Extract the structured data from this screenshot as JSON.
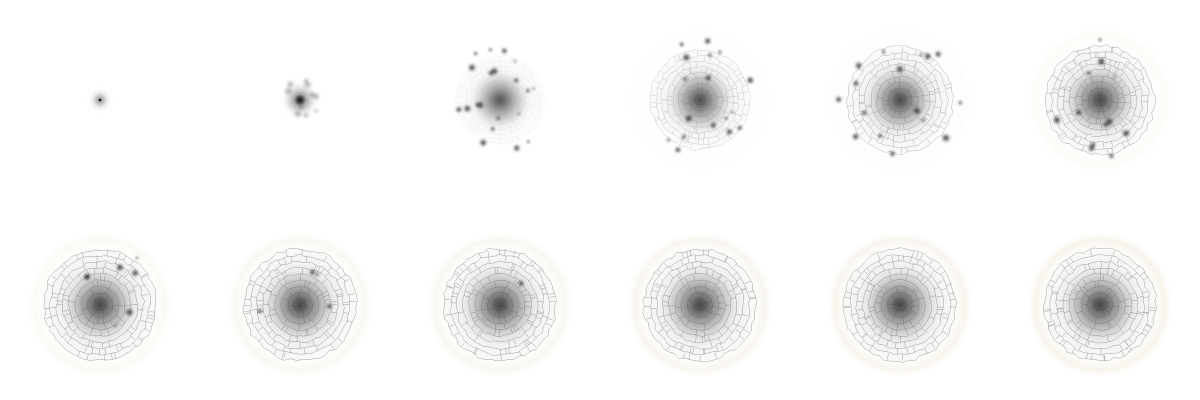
{
  "image": {
    "background": "#ffffff",
    "layout": {
      "rows": 2,
      "columns": 6
    },
    "ink_color": "#1a1a1a",
    "cell_line_color": "#555555",
    "halo_color": "#e9e4cf"
  },
  "frames": [
    {
      "stage": 1,
      "grid_level": 0.0,
      "halo_level": 0.0,
      "clump_count": 0,
      "spread": 0.0,
      "core": 0.2
    },
    {
      "stage": 2,
      "grid_level": 0.0,
      "halo_level": 0.0,
      "clump_count": 10,
      "spread": 0.35,
      "core": 0.55
    },
    {
      "stage": 3,
      "grid_level": 0.15,
      "halo_level": 0.0,
      "clump_count": 20,
      "spread": 0.9,
      "core": 0.8
    },
    {
      "stage": 4,
      "grid_level": 0.55,
      "halo_level": 0.1,
      "clump_count": 18,
      "spread": 1.0,
      "core": 0.85
    },
    {
      "stage": 5,
      "grid_level": 0.8,
      "halo_level": 0.2,
      "clump_count": 16,
      "spread": 1.0,
      "core": 0.9
    },
    {
      "stage": 6,
      "grid_level": 0.9,
      "halo_level": 0.3,
      "clump_count": 12,
      "spread": 1.0,
      "core": 0.92
    },
    {
      "stage": 7,
      "grid_level": 1.0,
      "halo_level": 0.45,
      "clump_count": 7,
      "spread": 1.0,
      "core": 0.95
    },
    {
      "stage": 8,
      "grid_level": 1.0,
      "halo_level": 0.55,
      "clump_count": 4,
      "spread": 1.0,
      "core": 0.95
    },
    {
      "stage": 9,
      "grid_level": 1.0,
      "halo_level": 0.65,
      "clump_count": 1,
      "spread": 1.0,
      "core": 1.0
    },
    {
      "stage": 10,
      "grid_level": 1.0,
      "halo_level": 0.7,
      "clump_count": 0,
      "spread": 1.0,
      "core": 1.0
    },
    {
      "stage": 11,
      "grid_level": 1.0,
      "halo_level": 0.75,
      "clump_count": 0,
      "spread": 1.0,
      "core": 1.0
    },
    {
      "stage": 12,
      "grid_level": 1.0,
      "halo_level": 0.8,
      "clump_count": 0,
      "spread": 1.0,
      "core": 1.0
    }
  ]
}
